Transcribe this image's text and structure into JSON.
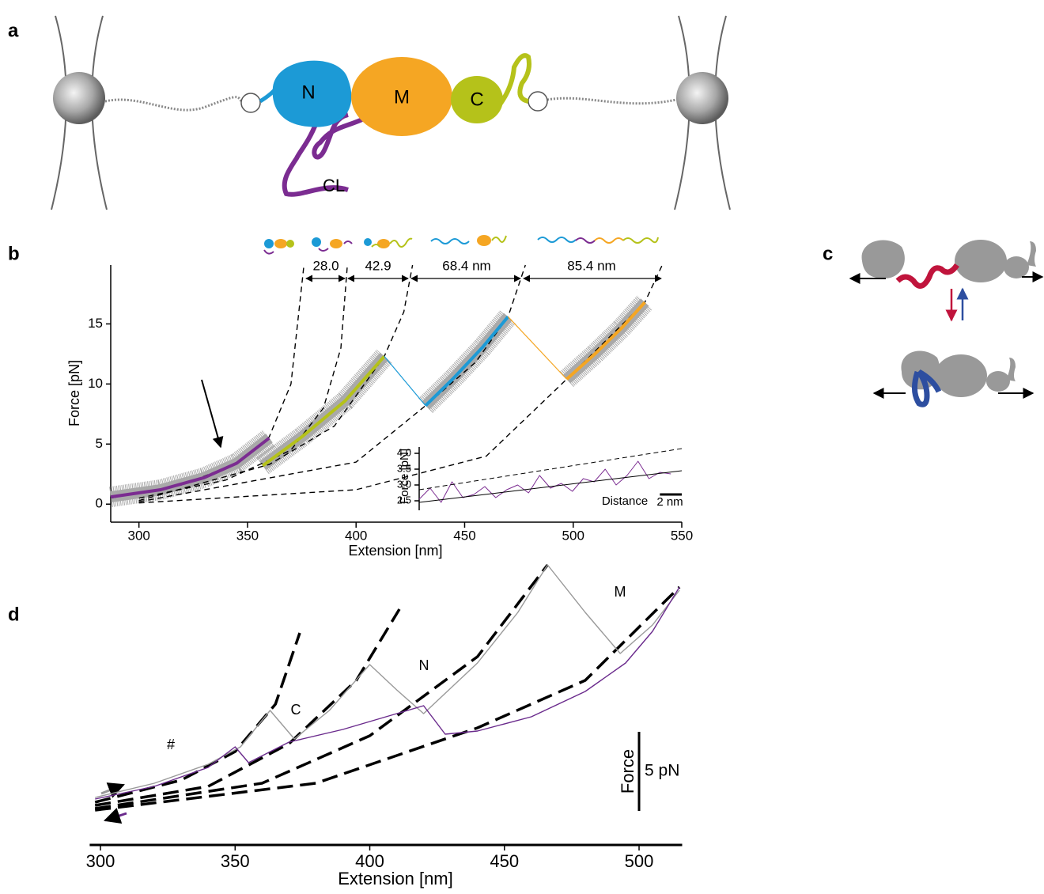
{
  "panel_labels": [
    "a",
    "b",
    "c",
    "d"
  ],
  "diagram_a": {
    "domains": [
      "N",
      "M",
      "C"
    ],
    "linker": "CL"
  },
  "chart_data": [
    {
      "type": "line",
      "xlabel": "Extension [nm]",
      "ylabel": "Force [pN]",
      "xlim": [
        287,
        550
      ],
      "ylim": [
        -1.5,
        19.9
      ],
      "xticks": [
        300,
        350,
        400,
        450,
        500,
        550
      ],
      "yticks": [
        0,
        5,
        10,
        15
      ],
      "band_color": "#a9a9a9",
      "gap_labels": [
        "28.0",
        "42.9",
        "68.4 nm",
        "85.4 nm"
      ],
      "series": [
        {
          "color": "#000000",
          "dash": true,
          "x": [
            287,
            320,
            345,
            360,
            370,
            376
          ],
          "values": [
            0.5,
            1.6,
            3.4,
            5.6,
            10,
            19.9
          ]
        },
        {
          "color": "#000000",
          "dash": true,
          "x": [
            300,
            340,
            370,
            385,
            393,
            396
          ],
          "values": [
            0.5,
            2,
            4.5,
            8,
            13,
            19.9
          ]
        },
        {
          "color": "#000000",
          "dash": true,
          "x": [
            300,
            360,
            390,
            413,
            422,
            426
          ],
          "values": [
            0.3,
            3.3,
            6.5,
            12.3,
            16,
            19.9
          ]
        },
        {
          "color": "#000000",
          "dash": true,
          "x": [
            300,
            400,
            432,
            455,
            470,
            478
          ],
          "values": [
            0.2,
            3.5,
            8.2,
            11.8,
            15.6,
            19.9
          ]
        },
        {
          "color": "#000000",
          "dash": true,
          "x": [
            300,
            400,
            460,
            497,
            533,
            541
          ],
          "values": [
            0.1,
            1.2,
            4,
            10.4,
            16.8,
            19.9
          ]
        },
        {
          "color": "#7b2c91",
          "band": true,
          "x": [
            287,
            310,
            330,
            345,
            360
          ],
          "values": [
            0.6,
            1.2,
            2.2,
            3.4,
            5.5
          ]
        },
        {
          "color": "#b5c21a",
          "band": true,
          "x": [
            357,
            375,
            395,
            413
          ],
          "values": [
            3.2,
            5.6,
            8.6,
            12.3
          ]
        },
        {
          "color": "#1c9ad6",
          "band": true,
          "connect": true,
          "x": [
            432,
            445,
            458,
            470
          ],
          "values": [
            8.2,
            10.5,
            13,
            15.6
          ]
        },
        {
          "color": "#f5a623",
          "band": true,
          "connect": true,
          "x": [
            497,
            510,
            522,
            533
          ],
          "values": [
            10.4,
            12.5,
            14.6,
            16.8
          ]
        }
      ]
    },
    {
      "type": "line",
      "xlabel": "Distance",
      "ylabel": "Force [pN]",
      "xlim": [
        0,
        24
      ],
      "ylim": [
        2.2,
        4.2
      ],
      "yticks": [
        2.5,
        {
          "value": 3,
          "label": "3.0"
        },
        3.5,
        {
          "value": 4,
          "label": "4.0"
        }
      ],
      "scale_bar": {
        "value": 2,
        "label": "2 nm",
        "axis": "x"
      },
      "series": [
        {
          "color": "#7b2c91",
          "x": [
            0,
            1,
            2,
            3,
            4,
            5,
            6,
            7,
            8,
            9,
            10,
            11,
            12,
            13,
            14,
            15,
            16,
            17,
            18,
            19,
            20,
            21,
            22,
            23
          ],
          "values": [
            2.55,
            2.9,
            2.45,
            3.1,
            2.6,
            2.7,
            2.95,
            2.6,
            2.85,
            3.0,
            2.75,
            3.3,
            2.9,
            3.05,
            2.8,
            3.2,
            3.1,
            3.5,
            3.0,
            3.3,
            3.75,
            3.2,
            3.4,
            3.35
          ]
        },
        {
          "color": "#000000",
          "dash": true,
          "x": [
            0,
            24
          ],
          "values": [
            2.85,
            4.15
          ]
        },
        {
          "color": "#000000",
          "x": [
            0,
            24
          ],
          "values": [
            2.45,
            3.45
          ]
        }
      ]
    },
    {
      "type": "line",
      "xlabel": "Extension [nm]",
      "ylabel": "Force",
      "xlim": [
        296,
        516
      ],
      "ylim": [
        -1.9,
        16.5
      ],
      "xticks": [
        300,
        350,
        400,
        450,
        500
      ],
      "scale_bar": {
        "value": 5,
        "label": "5 pN",
        "axis": "y"
      },
      "annotations": [
        "#",
        "C",
        "N",
        "M"
      ],
      "series": [
        {
          "color": "#000000",
          "dash": true,
          "x": [
            298,
            330,
            350,
            365,
            374
          ],
          "values": [
            0.8,
            2.2,
            4,
            7,
            11.5
          ]
        },
        {
          "color": "#000000",
          "dash": true,
          "x": [
            298,
            340,
            370,
            395,
            411
          ],
          "values": [
            0.6,
            1.8,
            4.5,
            8.5,
            13
          ]
        },
        {
          "color": "#000000",
          "dash": true,
          "x": [
            298,
            360,
            400,
            440,
            466
          ],
          "values": [
            0.4,
            2,
            5,
            10,
            15.8
          ]
        },
        {
          "color": "#000000",
          "dash": true,
          "x": [
            298,
            380,
            440,
            480,
            515
          ],
          "values": [
            0.3,
            2,
            5.5,
            8.5,
            14.4
          ]
        },
        {
          "color": "#9a9a9a",
          "x": [
            298,
            320,
            340,
            352,
            363,
            372,
            385,
            400,
            410,
            420,
            440,
            455,
            466,
            480,
            493,
            505,
            515
          ],
          "values": [
            1.1,
            2,
            3.2,
            4.3,
            6.6,
            4.8,
            6.6,
            9.5,
            7.9,
            6.4,
            9.6,
            12.8,
            15.8,
            12.8,
            10.2,
            12,
            14.2
          ]
        },
        {
          "color": "#6a2a8c",
          "x": [
            298,
            320,
            340,
            350,
            355,
            370,
            390,
            410,
            420,
            428,
            440,
            460,
            480,
            495,
            505,
            515
          ],
          "values": [
            1,
            1.8,
            3,
            4.3,
            3.3,
            4.6,
            5.4,
            6.4,
            6.9,
            5.1,
            5.3,
            6.2,
            7.8,
            9.6,
            11.6,
            14.4
          ]
        }
      ]
    }
  ]
}
